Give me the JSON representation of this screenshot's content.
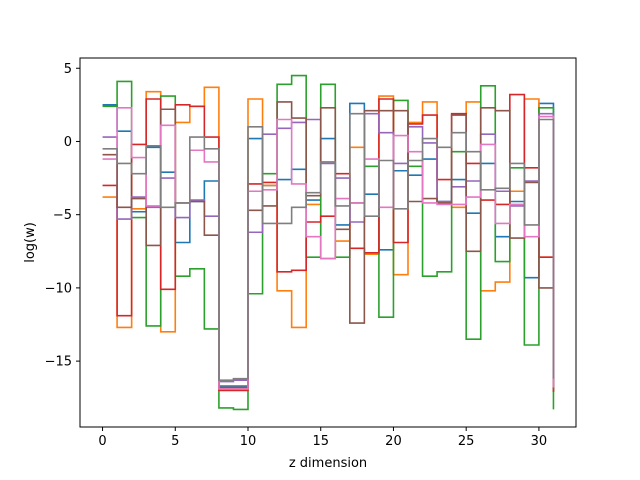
{
  "chart_data": {
    "type": "line",
    "step": true,
    "xlabel": "z dimension",
    "ylabel": "log(w)",
    "xlim": [
      -1.55,
      32.55
    ],
    "ylim": [
      -19.5,
      5.7
    ],
    "xticks": [
      0,
      5,
      10,
      15,
      20,
      25,
      30
    ],
    "yticks": [
      5,
      0,
      -5,
      -10,
      -15
    ],
    "x": [
      0,
      1,
      2,
      3,
      4,
      5,
      6,
      7,
      8,
      9,
      10,
      11,
      12,
      13,
      14,
      15,
      16,
      17,
      18,
      19,
      20,
      21,
      22,
      23,
      24,
      25,
      26,
      27,
      28,
      29,
      30,
      31
    ],
    "series": [
      {
        "color": "#1f77b4",
        "values": [
          2.5,
          0.7,
          -4.8,
          -0.4,
          -2.1,
          -6.9,
          -4.1,
          -2.7,
          -16.7,
          -16.7,
          0.2,
          -3.0,
          -2.6,
          -1.9,
          -4.0,
          0.2,
          -5.7,
          2.6,
          -3.6,
          -7.4,
          -2.0,
          -2.3,
          -1.2,
          -4.1,
          -2.6,
          -4.9,
          -1.5,
          -6.5,
          -4.1,
          -9.3,
          2.6,
          -16.7
        ]
      },
      {
        "color": "#ff7f0e",
        "values": [
          -3.8,
          -12.7,
          -4.6,
          3.4,
          -13.0,
          1.3,
          2.4,
          3.7,
          -16.9,
          -16.9,
          2.9,
          -3.0,
          -10.2,
          -12.7,
          -4.3,
          -8.0,
          -6.8,
          -0.4,
          -7.7,
          3.1,
          -9.1,
          1.3,
          2.7,
          -4.2,
          -4.5,
          2.7,
          -10.2,
          -9.6,
          -3.4,
          2.9,
          -7.9,
          -17.1
        ]
      },
      {
        "color": "#2ca02c",
        "values": [
          2.4,
          4.1,
          -5.2,
          -12.6,
          3.1,
          -9.2,
          -8.7,
          -12.8,
          -18.2,
          -18.3,
          -10.4,
          -2.2,
          3.9,
          4.5,
          -7.9,
          3.9,
          -7.9,
          -4.2,
          -1.7,
          -12.0,
          2.8,
          -1.7,
          -9.2,
          -8.9,
          -0.7,
          -13.5,
          3.8,
          -8.2,
          -1.8,
          -13.9,
          2.3,
          -18.3
        ]
      },
      {
        "color": "#d62728",
        "values": [
          -3.0,
          -11.9,
          -0.2,
          2.9,
          -10.1,
          2.5,
          2.4,
          0.3,
          -17.0,
          -17.0,
          -2.9,
          -2.8,
          -8.9,
          -8.8,
          -5.5,
          -5.1,
          -2.2,
          -7.3,
          -7.6,
          2.9,
          -6.9,
          1.2,
          1.8,
          -2.6,
          1.9,
          -1.5,
          -4.0,
          -4.3,
          3.2,
          -1.8,
          -7.9,
          -17.1
        ]
      },
      {
        "color": "#9467bd",
        "values": [
          0.3,
          -5.3,
          -3.8,
          -4.5,
          -2.5,
          -5.2,
          -4.0,
          -5.1,
          -16.4,
          -16.3,
          -6.2,
          0.5,
          0.9,
          1.3,
          1.5,
          -1.5,
          -2.5,
          -5.5,
          1.9,
          0.6,
          -1.5,
          1.0,
          -0.1,
          -4.1,
          -3.1,
          -2.7,
          0.5,
          -3.4,
          -4.4,
          -2.7,
          1.9,
          -16.4
        ]
      },
      {
        "color": "#8c564b",
        "values": [
          -0.9,
          -4.5,
          -3.9,
          -7.1,
          2.2,
          -4.2,
          -4.1,
          -6.4,
          -16.8,
          -16.8,
          -4.7,
          -4.4,
          2.7,
          1.6,
          -3.7,
          2.3,
          -6.0,
          -12.4,
          2.1,
          2.1,
          2.1,
          -4.1,
          -3.9,
          -4.2,
          1.8,
          -7.5,
          2.3,
          2.1,
          -6.6,
          -2.8,
          -10.0,
          -17.0
        ]
      },
      {
        "color": "#e377c2",
        "values": [
          -1.2,
          2.3,
          -1.1,
          -4.4,
          1.1,
          -4.2,
          -0.6,
          -1.4,
          -16.9,
          -16.9,
          -3.4,
          -3.3,
          1.5,
          -2.9,
          -6.5,
          -8.0,
          -3.9,
          -4.2,
          -1.2,
          -4.5,
          0.4,
          -0.7,
          -4.2,
          -4.3,
          -4.3,
          -3.8,
          -0.2,
          -5.6,
          -4.3,
          -6.5,
          1.7,
          -16.8
        ]
      },
      {
        "color": "#7f7f7f",
        "values": [
          -0.5,
          -1.5,
          -2.2,
          -0.3,
          -4.5,
          -4.2,
          0.3,
          -0.5,
          -16.3,
          -16.2,
          1.0,
          -5.6,
          -5.6,
          -4.5,
          -3.5,
          -1.4,
          -4.4,
          1.9,
          -5.1,
          -1.3,
          -4.6,
          -1.3,
          0.2,
          -0.4,
          0.6,
          -0.7,
          -3.3,
          -3.2,
          -1.5,
          -5.7,
          1.5,
          -16.2
        ]
      }
    ]
  }
}
